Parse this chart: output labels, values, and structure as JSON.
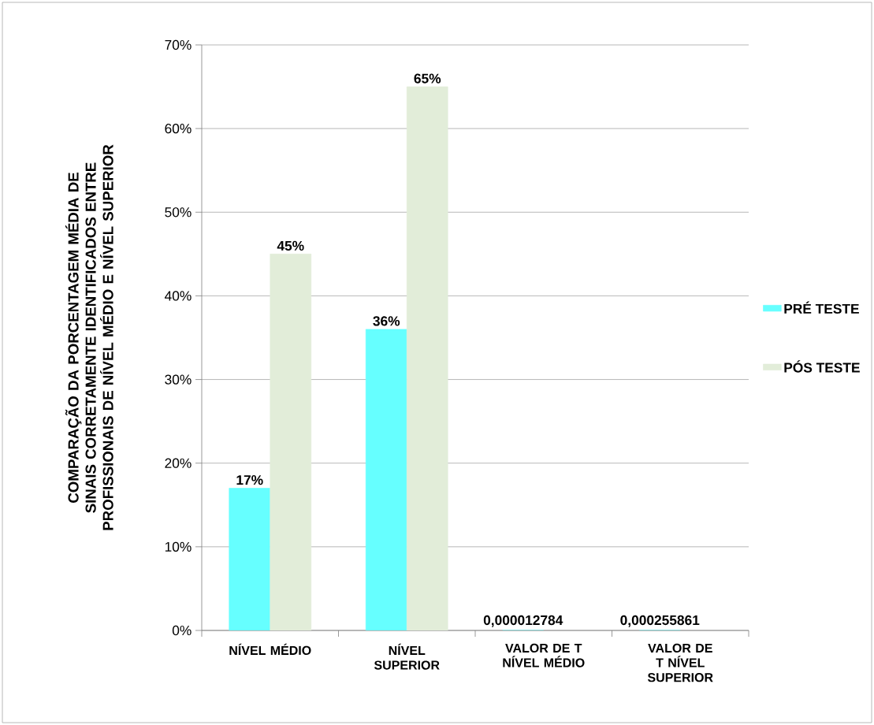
{
  "chart_data": {
    "type": "bar",
    "ylabel": "COMPARAÇÃO DA PORCENTAGEM MÉDIA DE SINAIS CORRETAMENTE IDENTIFICADOS ENTRE PROFISSIONAIS DE NÍVEL MÉDIO E NÍVEL SUPERIOR",
    "categories": [
      "NÍVEL MÉDIO",
      "NÍVEL SUPERIOR",
      "VALOR DE T NÍVEL MÉDIO",
      "VALOR DE T NÍVEL SUPERIOR"
    ],
    "series": [
      {
        "name": "PRÉ TESTE",
        "color": "#66FFFF",
        "values": [
          17,
          36,
          1.2784e-05,
          0.000255861
        ],
        "value_labels": [
          "17%",
          "36%",
          "0,000012784",
          "0,000255861"
        ]
      },
      {
        "name": "PÓS TESTE",
        "color": "#E2EDD9",
        "values": [
          45,
          65,
          null,
          null
        ],
        "value_labels": [
          "45%",
          "65%",
          null,
          null
        ]
      }
    ],
    "ylim": [
      0,
      70
    ],
    "yticks": [
      {
        "value": 0,
        "label": "0%"
      },
      {
        "value": 10,
        "label": "10%"
      },
      {
        "value": 20,
        "label": "20%"
      },
      {
        "value": 30,
        "label": "30%"
      },
      {
        "value": 40,
        "label": "40%"
      },
      {
        "value": 50,
        "label": "50%"
      },
      {
        "value": 60,
        "label": "60%"
      },
      {
        "value": 70,
        "label": "70%"
      }
    ],
    "grid": "y",
    "legend": "right"
  }
}
